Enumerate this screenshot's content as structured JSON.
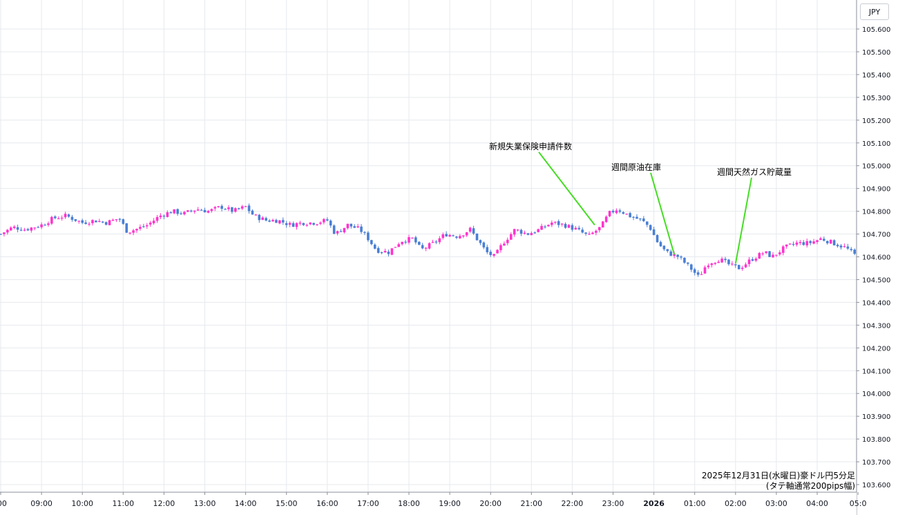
{
  "currency_label": "JPY",
  "info": {
    "line1": "2025年12月31日(水曜日)豪ドル円5分足",
    "line2": "(タテ軸通常200pips幅)"
  },
  "colors": {
    "up": "#ff33cc",
    "down": "#4a7fd4",
    "grid": "#e6e9ee",
    "annotation_line": "#44dd22",
    "axis_border": "#8a8f99"
  },
  "chart_data": {
    "type": "candlestick",
    "title": "",
    "xlabel": "",
    "ylabel": "JPY",
    "ylim": [
      103.55,
      105.65
    ],
    "grid": true,
    "y_ticks": [
      "103.600",
      "103.700",
      "103.800",
      "103.900",
      "104.000",
      "104.100",
      "104.200",
      "104.300",
      "104.400",
      "104.500",
      "104.600",
      "104.700",
      "104.800",
      "104.900",
      "105.000",
      "105.100",
      "105.200",
      "105.300",
      "105.400",
      "105.500",
      "105.600"
    ],
    "x_ticks": [
      {
        "label": ":00",
        "hour": 8,
        "bold": false
      },
      {
        "label": "09:00",
        "hour": 9,
        "bold": false
      },
      {
        "label": "10:00",
        "hour": 10,
        "bold": false
      },
      {
        "label": "11:00",
        "hour": 11,
        "bold": false
      },
      {
        "label": "12:00",
        "hour": 12,
        "bold": false
      },
      {
        "label": "13:00",
        "hour": 13,
        "bold": false
      },
      {
        "label": "14:00",
        "hour": 14,
        "bold": false
      },
      {
        "label": "15:00",
        "hour": 15,
        "bold": false
      },
      {
        "label": "16:00",
        "hour": 16,
        "bold": false
      },
      {
        "label": "17:00",
        "hour": 17,
        "bold": false
      },
      {
        "label": "18:00",
        "hour": 18,
        "bold": false
      },
      {
        "label": "19:00",
        "hour": 19,
        "bold": false
      },
      {
        "label": "20:00",
        "hour": 20,
        "bold": false
      },
      {
        "label": "21:00",
        "hour": 21,
        "bold": false
      },
      {
        "label": "22:00",
        "hour": 22,
        "bold": false
      },
      {
        "label": "23:00",
        "hour": 23,
        "bold": false
      },
      {
        "label": "2026",
        "hour": 24,
        "bold": true
      },
      {
        "label": "01:00",
        "hour": 25,
        "bold": false
      },
      {
        "label": "02:00",
        "hour": 26,
        "bold": false
      },
      {
        "label": "03:00",
        "hour": 27,
        "bold": false
      },
      {
        "label": "04:00",
        "hour": 28,
        "bold": false
      },
      {
        "label": "05:0",
        "hour": 29,
        "bold": false
      }
    ],
    "close_path": [
      [
        8.0,
        104.7
      ],
      [
        8.3,
        104.73
      ],
      [
        8.6,
        104.72
      ],
      [
        9.0,
        104.74
      ],
      [
        9.3,
        104.77
      ],
      [
        9.6,
        104.78
      ],
      [
        10.0,
        104.75
      ],
      [
        10.3,
        104.76
      ],
      [
        10.6,
        104.75
      ],
      [
        10.9,
        104.77
      ],
      [
        11.1,
        104.71
      ],
      [
        11.3,
        104.72
      ],
      [
        11.6,
        104.74
      ],
      [
        11.9,
        104.78
      ],
      [
        12.2,
        104.8
      ],
      [
        12.5,
        104.79
      ],
      [
        12.8,
        104.81
      ],
      [
        13.1,
        104.8
      ],
      [
        13.4,
        104.82
      ],
      [
        13.7,
        104.8
      ],
      [
        14.0,
        104.82
      ],
      [
        14.2,
        104.78
      ],
      [
        14.5,
        104.76
      ],
      [
        14.8,
        104.76
      ],
      [
        15.1,
        104.74
      ],
      [
        15.4,
        104.75
      ],
      [
        15.7,
        104.75
      ],
      [
        16.0,
        104.76
      ],
      [
        16.2,
        104.7
      ],
      [
        16.5,
        104.74
      ],
      [
        16.8,
        104.72
      ],
      [
        17.0,
        104.68
      ],
      [
        17.2,
        104.63
      ],
      [
        17.5,
        104.62
      ],
      [
        17.8,
        104.67
      ],
      [
        18.1,
        104.68
      ],
      [
        18.3,
        104.63
      ],
      [
        18.6,
        104.66
      ],
      [
        18.9,
        104.7
      ],
      [
        19.2,
        104.69
      ],
      [
        19.5,
        104.72
      ],
      [
        19.7,
        104.67
      ],
      [
        19.9,
        104.62
      ],
      [
        20.1,
        104.6
      ],
      [
        20.3,
        104.66
      ],
      [
        20.6,
        104.72
      ],
      [
        20.9,
        104.7
      ],
      [
        21.2,
        104.72
      ],
      [
        21.5,
        104.75
      ],
      [
        21.8,
        104.74
      ],
      [
        22.1,
        104.72
      ],
      [
        22.4,
        104.69
      ],
      [
        22.7,
        104.73
      ],
      [
        22.9,
        104.79
      ],
      [
        23.1,
        104.81
      ],
      [
        23.4,
        104.78
      ],
      [
        23.7,
        104.76
      ],
      [
        23.9,
        104.73
      ],
      [
        24.1,
        104.66
      ],
      [
        24.3,
        104.62
      ],
      [
        24.6,
        104.6
      ],
      [
        24.9,
        104.55
      ],
      [
        25.1,
        104.51
      ],
      [
        25.3,
        104.57
      ],
      [
        25.6,
        104.59
      ],
      [
        25.9,
        104.56
      ],
      [
        26.1,
        104.55
      ],
      [
        26.4,
        104.59
      ],
      [
        26.7,
        104.62
      ],
      [
        26.9,
        104.6
      ],
      [
        27.2,
        104.64
      ],
      [
        27.5,
        104.66
      ],
      [
        27.8,
        104.66
      ],
      [
        28.1,
        104.68
      ],
      [
        28.4,
        104.66
      ],
      [
        28.7,
        104.64
      ],
      [
        28.9,
        104.61
      ],
      [
        29.05,
        104.6
      ]
    ],
    "annotations": [
      {
        "text": "新規失業保険申請件数",
        "hour": 22.55,
        "price": 104.74
      },
      {
        "text": "週間原油在庫",
        "hour": 24.5,
        "price": 104.61
      },
      {
        "text": "週間天然ガス貯蔵量",
        "hour": 26.0,
        "price": 104.57
      }
    ]
  }
}
